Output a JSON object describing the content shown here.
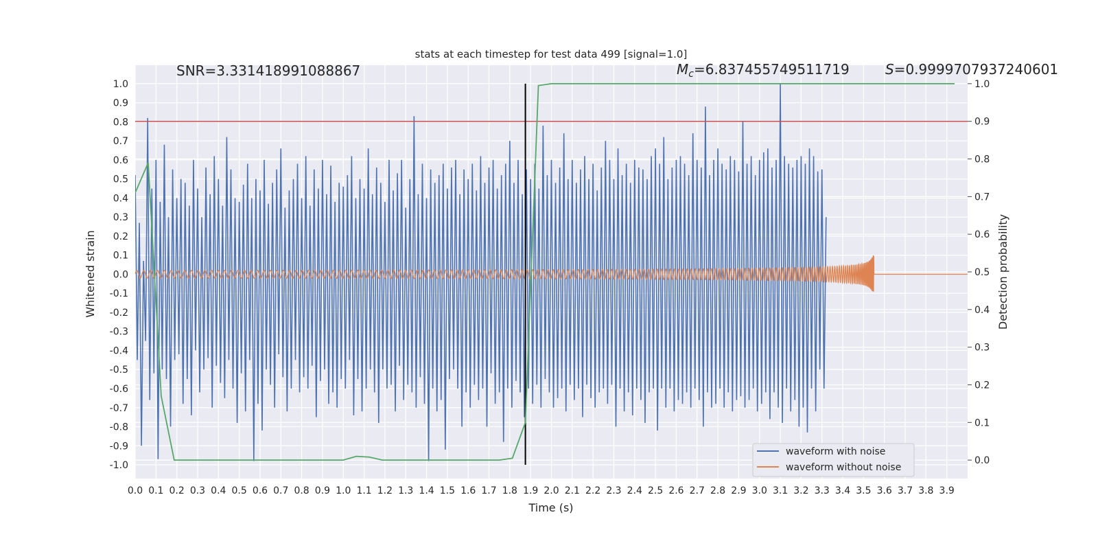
{
  "chart_data": {
    "type": "line",
    "title": "stats at each timestep for test data 499 [signal=1.0]",
    "xlabel": "Time (s)",
    "ylabel": "Whitened strain",
    "ylabel_right": "Detection probability",
    "xlim": [
      0,
      4.0
    ],
    "ylim": [
      -1.072,
      1.097
    ],
    "ylim_right": [
      -0.049,
      1.049
    ],
    "grid": true,
    "legend_placement": "lower-right",
    "x_ticks": [
      "0.0",
      "0.1",
      "0.2",
      "0.3",
      "0.4",
      "0.5",
      "0.6",
      "0.7",
      "0.8",
      "0.9",
      "1.0",
      "1.1",
      "1.2",
      "1.3",
      "1.4",
      "1.5",
      "1.6",
      "1.7",
      "1.8",
      "1.9",
      "2.0",
      "2.1",
      "2.2",
      "2.3",
      "2.4",
      "2.5",
      "2.6",
      "2.7",
      "2.8",
      "2.9",
      "3.0",
      "3.1",
      "3.2",
      "3.3",
      "3.4",
      "3.5",
      "3.6",
      "3.7",
      "3.8",
      "3.9"
    ],
    "y_ticks": [
      "-1.0",
      "-0.9",
      "-0.8",
      "-0.7",
      "-0.6",
      "-0.5",
      "-0.4",
      "-0.3",
      "-0.2",
      "-0.1",
      "0.0",
      "0.1",
      "0.2",
      "0.3",
      "0.4",
      "0.5",
      "0.6",
      "0.7",
      "0.8",
      "0.9",
      "1.0"
    ],
    "y_ticks_right": [
      "0.0",
      "0.1",
      "0.2",
      "0.3",
      "0.4",
      "0.5",
      "0.6",
      "0.7",
      "0.8",
      "0.9",
      "1.0"
    ],
    "annotations": {
      "snr": "SNR=3.331418991088867",
      "mc": "=6.837455749511719",
      "mc_symbol": "M",
      "mc_sub": "c",
      "s_symbol": "S",
      "s": "=0.9999707937240601"
    },
    "threshold_probability": 0.9,
    "marker_time": 1.875,
    "colors": {
      "noisy": "#4c72b0",
      "clean": "#dd8452",
      "probability": "#55a868",
      "threshold": "#c44e52",
      "marker": "#000000",
      "background": "#eaeaf2"
    },
    "series": [
      {
        "name": "waveform with noise",
        "dt": 0.01,
        "values": [
          0.52,
          -0.45,
          0.27,
          -0.9,
          0.07,
          -0.35,
          0.82,
          -0.66,
          0.45,
          -0.52,
          0.6,
          -0.97,
          0.38,
          -0.5,
          0.68,
          -0.55,
          0.3,
          -0.8,
          0.55,
          -0.45,
          0.4,
          -0.42,
          0.5,
          -0.68,
          0.48,
          -0.55,
          0.36,
          -0.74,
          0.6,
          -0.4,
          0.45,
          -0.62,
          0.3,
          -0.5,
          0.56,
          -0.44,
          0.42,
          -0.7,
          0.62,
          -0.48,
          0.5,
          -0.57,
          0.36,
          -0.65,
          0.72,
          -0.45,
          0.55,
          -0.6,
          0.4,
          -0.78,
          0.38,
          -0.52,
          0.47,
          -0.72,
          0.58,
          -0.45,
          0.4,
          -0.98,
          0.5,
          -0.68,
          0.44,
          -0.82,
          0.6,
          -0.5,
          0.37,
          -0.58,
          0.48,
          -0.7,
          0.55,
          -0.42,
          0.66,
          -0.54,
          0.35,
          -0.72,
          0.44,
          -0.6,
          0.5,
          -0.45,
          0.58,
          -0.62,
          0.4,
          -0.54,
          0.62,
          -0.6,
          0.36,
          -0.48,
          0.55,
          -0.75,
          0.45,
          -0.56,
          0.6,
          -0.5,
          0.42,
          -0.68,
          0.57,
          -0.62,
          0.38,
          -0.7,
          0.48,
          -0.55,
          0.46,
          -0.6,
          0.52,
          -0.45,
          0.62,
          -0.74,
          0.4,
          -0.55,
          0.5,
          -0.72,
          0.45,
          -0.6,
          0.66,
          -0.5,
          0.42,
          -0.62,
          0.56,
          -0.78,
          0.48,
          -0.5,
          0.38,
          -0.6,
          0.6,
          -0.58,
          0.44,
          -0.72,
          0.53,
          -0.48,
          0.6,
          -0.66,
          0.35,
          -0.58,
          0.5,
          -0.62,
          0.83,
          -0.7,
          0.42,
          -0.54,
          0.58,
          -0.68,
          0.4,
          -0.98,
          0.55,
          -0.6,
          0.48,
          -0.72,
          0.52,
          -0.66,
          0.58,
          -0.92,
          0.45,
          -0.55,
          0.56,
          -0.5,
          0.6,
          -0.6,
          0.42,
          -0.8,
          0.55,
          -0.62,
          0.5,
          -0.7,
          0.58,
          -0.58,
          0.44,
          -0.66,
          0.62,
          -0.6,
          0.48,
          -0.8,
          0.56,
          -0.52,
          0.6,
          -0.68,
          0.45,
          -0.62,
          0.52,
          -0.88,
          0.58,
          -0.6,
          0.7,
          -0.7,
          0.48,
          -0.56,
          0.6,
          -0.62,
          0.42,
          -0.75,
          0.55,
          -0.6,
          0.5,
          -0.68,
          0.58,
          -0.58,
          0.45,
          -0.7,
          0.78,
          -0.55,
          0.52,
          -0.62,
          0.6,
          -0.7,
          0.48,
          -0.65,
          0.56,
          -0.6,
          0.74,
          -0.72,
          0.5,
          -0.58,
          0.6,
          -0.66,
          0.48,
          -0.6,
          0.55,
          -0.75,
          0.62,
          -0.58,
          0.5,
          -0.65,
          0.58,
          -0.7,
          0.44,
          -0.62,
          0.56,
          -0.6,
          0.7,
          -0.68,
          0.6,
          -0.58,
          0.5,
          -0.8,
          0.66,
          -0.6,
          0.52,
          -0.72,
          0.58,
          -0.62,
          0.48,
          -0.74,
          0.6,
          -0.6,
          0.56,
          -0.66,
          0.55,
          -0.78,
          0.5,
          -0.62,
          0.62,
          -0.6,
          0.66,
          -0.82,
          0.58,
          -0.6,
          0.72,
          -0.7,
          0.5,
          -0.6,
          0.56,
          -0.72,
          0.6,
          -0.66,
          0.62,
          -0.68,
          0.58,
          -0.62,
          0.52,
          -0.7,
          0.74,
          -0.6,
          0.6,
          -0.66,
          0.56,
          -0.8,
          0.88,
          -0.62,
          0.52,
          -0.7,
          0.6,
          -0.68,
          0.66,
          -0.6,
          0.58,
          -0.7,
          0.55,
          -0.62,
          0.62,
          -0.72,
          0.6,
          -0.66,
          0.54,
          -0.64,
          0.8,
          -0.7,
          0.58,
          -0.66,
          0.62,
          -0.6,
          0.52,
          -0.72,
          0.6,
          -0.68,
          0.64,
          -0.62,
          0.66,
          -0.76,
          0.56,
          -0.62,
          0.6,
          -0.7,
          1.0,
          -0.78,
          0.62,
          -0.6,
          0.58,
          -0.72,
          0.56,
          -0.66,
          0.6,
          -0.8,
          0.62,
          -0.7,
          0.58,
          -0.83,
          0.66,
          -0.6,
          0.62,
          -0.72,
          0.54,
          -0.5,
          0.55,
          -0.6,
          0.3
        ]
      },
      {
        "name": "waveform without noise",
        "merger_time": 3.55,
        "amplitude_start": 0.02,
        "amplitude_peak": 0.1,
        "frequency_start_hz": 30
      },
      {
        "axis": "right",
        "dt": 0.0625,
        "values": [
          0.71,
          0.79,
          0.17,
          0.0,
          0.0,
          0.0,
          0.0,
          0.0,
          0.0,
          0.0,
          0.0,
          0.0,
          0.0,
          0.0,
          0.0,
          0.0,
          0.0,
          0.01,
          0.008,
          0.0,
          0.0,
          0.0,
          0.0,
          0.0,
          0.0,
          0.0,
          0.0,
          0.0,
          0.0,
          0.005,
          0.1,
          0.995,
          1.0,
          1.0,
          1.0,
          1.0,
          1.0,
          1.0,
          1.0,
          1.0,
          1.0,
          1.0,
          1.0,
          1.0,
          1.0,
          1.0,
          1.0,
          1.0,
          1.0,
          1.0,
          1.0,
          1.0,
          1.0,
          1.0,
          1.0,
          1.0,
          1.0,
          1.0,
          1.0,
          1.0,
          1.0,
          1.0,
          1.0,
          1.0
        ]
      }
    ]
  }
}
